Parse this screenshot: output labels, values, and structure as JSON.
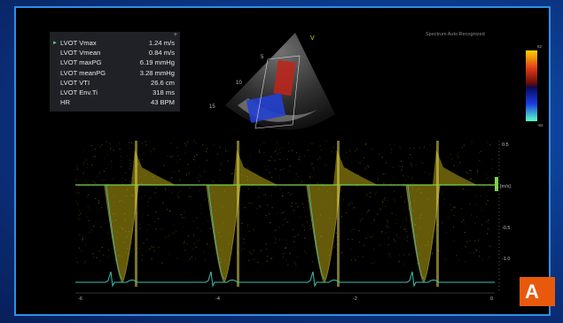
{
  "measurements": [
    {
      "name": "LVOT Vmax",
      "value": "1.24 m/s"
    },
    {
      "name": "LVOT Vmean",
      "value": "0.84 m/s"
    },
    {
      "name": "LVOT maxPG",
      "value": "6.19 mmHg"
    },
    {
      "name": "LVOT meanPG",
      "value": "3.28 mmHg"
    },
    {
      "name": "LVOT VTI",
      "value": "26.6 cm"
    },
    {
      "name": "LVOT Env.Ti",
      "value": "318 ms"
    },
    {
      "name": "HR",
      "value": "43 BPM"
    }
  ],
  "spectrum_label": "Spectrum Auto Recognized",
  "image_depth_labels": [
    "5",
    "10",
    "15"
  ],
  "image_marker": "V",
  "color_scale": {
    "top": "62",
    "bottom": "-62"
  },
  "velocity_scale": {
    "labels": [
      "0.5",
      "[m/s]",
      "-0.5",
      "-1.0"
    ]
  },
  "time_axis": {
    "labels": [
      "-6",
      "-4",
      "-2",
      "0"
    ]
  },
  "badge": "A",
  "colors": {
    "frame": "#2f8fe6",
    "spectral": "#e6d21e",
    "ecg": "#3fc2b0",
    "baseline": "#7fd14a",
    "badge": "#e8590c"
  }
}
